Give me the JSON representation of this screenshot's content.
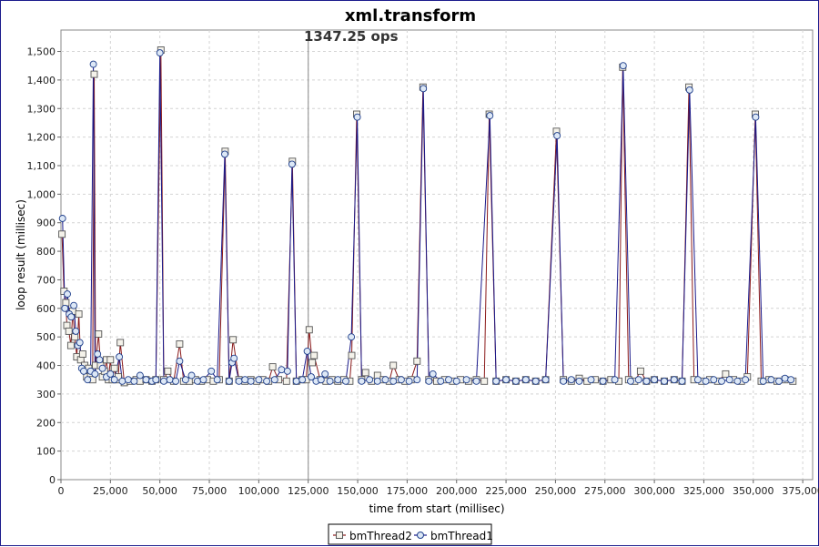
{
  "chart_data": {
    "type": "line",
    "title": "xml.transform",
    "annotation": "1347.25 ops",
    "marker_x": 125000,
    "xlabel": "time from start (millisec)",
    "ylabel": "loop result (millisec)",
    "xlim": [
      0,
      380000
    ],
    "ylim": [
      0,
      1575
    ],
    "xticks": [
      0,
      25000,
      50000,
      75000,
      100000,
      125000,
      150000,
      175000,
      200000,
      225000,
      250000,
      275000,
      300000,
      325000,
      350000,
      375000
    ],
    "xtick_labels": [
      "0",
      "25,000",
      "50,000",
      "75,000",
      "100,000",
      "125,000",
      "150,000",
      "175,000",
      "200,000",
      "225,000",
      "250,000",
      "275,000",
      "300,000",
      "325,000",
      "350,000",
      "375,000"
    ],
    "yticks": [
      0,
      100,
      200,
      300,
      400,
      500,
      600,
      700,
      800,
      900,
      1000,
      1100,
      1200,
      1300,
      1400,
      1500
    ],
    "ytick_labels": [
      "0",
      "100",
      "200",
      "300",
      "400",
      "500",
      "600",
      "700",
      "800",
      "900",
      "1,000",
      "1,100",
      "1,200",
      "1,300",
      "1,400",
      "1,500"
    ],
    "grid": true,
    "legend_position": "bottom-center",
    "series": [
      {
        "name": "bmThread2",
        "color": "#8b1a1a",
        "marker": "square",
        "points": [
          [
            500,
            860
          ],
          [
            1500,
            660
          ],
          [
            2500,
            620
          ],
          [
            3000,
            540
          ],
          [
            4000,
            520
          ],
          [
            5000,
            470
          ],
          [
            6000,
            590
          ],
          [
            7000,
            500
          ],
          [
            8000,
            430
          ],
          [
            9000,
            580
          ],
          [
            10000,
            420
          ],
          [
            11000,
            440
          ],
          [
            12000,
            400
          ],
          [
            13000,
            360
          ],
          [
            14000,
            390
          ],
          [
            15000,
            370
          ],
          [
            16000,
            350
          ],
          [
            16800,
            1420
          ],
          [
            17500,
            400
          ],
          [
            19000,
            510
          ],
          [
            20000,
            400
          ],
          [
            21000,
            360
          ],
          [
            22000,
            380
          ],
          [
            23000,
            420
          ],
          [
            24000,
            350
          ],
          [
            25000,
            420
          ],
          [
            26000,
            350
          ],
          [
            27000,
            390
          ],
          [
            28000,
            350
          ],
          [
            29000,
            360
          ],
          [
            30000,
            480
          ],
          [
            32000,
            340
          ],
          [
            35000,
            345
          ],
          [
            38000,
            350
          ],
          [
            40000,
            345
          ],
          [
            43000,
            350
          ],
          [
            46000,
            345
          ],
          [
            48000,
            350
          ],
          [
            50500,
            1505
          ],
          [
            52000,
            350
          ],
          [
            54000,
            380
          ],
          [
            57000,
            345
          ],
          [
            60000,
            475
          ],
          [
            62000,
            345
          ],
          [
            65000,
            345
          ],
          [
            68000,
            350
          ],
          [
            71000,
            345
          ],
          [
            74000,
            350
          ],
          [
            77000,
            345
          ],
          [
            80000,
            350
          ],
          [
            83000,
            1150
          ],
          [
            85000,
            345
          ],
          [
            87000,
            490
          ],
          [
            90000,
            350
          ],
          [
            93000,
            345
          ],
          [
            96000,
            350
          ],
          [
            99000,
            345
          ],
          [
            102000,
            350
          ],
          [
            105000,
            345
          ],
          [
            107000,
            395
          ],
          [
            110000,
            350
          ],
          [
            114000,
            345
          ],
          [
            117000,
            1115
          ],
          [
            119000,
            345
          ],
          [
            122000,
            350
          ],
          [
            124000,
            350
          ],
          [
            125500,
            525
          ],
          [
            127000,
            410
          ],
          [
            128000,
            435
          ],
          [
            131000,
            350
          ],
          [
            134000,
            345
          ],
          [
            137000,
            350
          ],
          [
            140000,
            345
          ],
          [
            143000,
            350
          ],
          [
            146000,
            345
          ],
          [
            147000,
            435
          ],
          [
            149500,
            1280
          ],
          [
            152000,
            350
          ],
          [
            154000,
            375
          ],
          [
            157000,
            345
          ],
          [
            160000,
            365
          ],
          [
            163000,
            350
          ],
          [
            166000,
            345
          ],
          [
            168000,
            400
          ],
          [
            171000,
            350
          ],
          [
            174000,
            345
          ],
          [
            177000,
            350
          ],
          [
            180000,
            415
          ],
          [
            183000,
            1375
          ],
          [
            186000,
            350
          ],
          [
            190000,
            345
          ],
          [
            194000,
            350
          ],
          [
            198000,
            345
          ],
          [
            202000,
            350
          ],
          [
            206000,
            345
          ],
          [
            210000,
            350
          ],
          [
            214000,
            345
          ],
          [
            216500,
            1280
          ],
          [
            220000,
            345
          ],
          [
            225000,
            350
          ],
          [
            230000,
            345
          ],
          [
            235000,
            350
          ],
          [
            240000,
            345
          ],
          [
            245000,
            350
          ],
          [
            250500,
            1220
          ],
          [
            254000,
            350
          ],
          [
            258000,
            345
          ],
          [
            262000,
            355
          ],
          [
            266000,
            345
          ],
          [
            270000,
            350
          ],
          [
            274000,
            345
          ],
          [
            278000,
            350
          ],
          [
            282000,
            345
          ],
          [
            284000,
            1445
          ],
          [
            287000,
            350
          ],
          [
            290000,
            345
          ],
          [
            293000,
            380
          ],
          [
            296000,
            345
          ],
          [
            300000,
            350
          ],
          [
            305000,
            345
          ],
          [
            310000,
            350
          ],
          [
            314000,
            345
          ],
          [
            317500,
            1375
          ],
          [
            320000,
            350
          ],
          [
            324000,
            345
          ],
          [
            328000,
            350
          ],
          [
            332000,
            345
          ],
          [
            336000,
            370
          ],
          [
            340000,
            350
          ],
          [
            344000,
            345
          ],
          [
            347000,
            360
          ],
          [
            351000,
            1280
          ],
          [
            354000,
            345
          ],
          [
            358000,
            350
          ],
          [
            362000,
            345
          ],
          [
            366000,
            350
          ],
          [
            370000,
            345
          ]
        ]
      },
      {
        "name": "bmThread1",
        "color": "#1a1a8b",
        "marker": "circle",
        "points": [
          [
            800,
            915
          ],
          [
            2000,
            600
          ],
          [
            3200,
            650
          ],
          [
            4200,
            580
          ],
          [
            5200,
            570
          ],
          [
            6500,
            610
          ],
          [
            7500,
            520
          ],
          [
            8500,
            470
          ],
          [
            9500,
            480
          ],
          [
            10500,
            390
          ],
          [
            11500,
            380
          ],
          [
            13500,
            350
          ],
          [
            15000,
            380
          ],
          [
            16400,
            1455
          ],
          [
            17200,
            370
          ],
          [
            18500,
            440
          ],
          [
            19500,
            420
          ],
          [
            21000,
            390
          ],
          [
            23000,
            360
          ],
          [
            25000,
            370
          ],
          [
            27000,
            350
          ],
          [
            29500,
            430
          ],
          [
            31000,
            345
          ],
          [
            34000,
            350
          ],
          [
            37000,
            345
          ],
          [
            40000,
            365
          ],
          [
            43000,
            350
          ],
          [
            46000,
            345
          ],
          [
            48000,
            350
          ],
          [
            50000,
            1495
          ],
          [
            52000,
            345
          ],
          [
            55000,
            350
          ],
          [
            58000,
            345
          ],
          [
            60000,
            415
          ],
          [
            63000,
            350
          ],
          [
            66000,
            365
          ],
          [
            69000,
            345
          ],
          [
            72000,
            350
          ],
          [
            76000,
            380
          ],
          [
            79000,
            350
          ],
          [
            82800,
            1140
          ],
          [
            85000,
            345
          ],
          [
            86500,
            410
          ],
          [
            87500,
            425
          ],
          [
            90000,
            345
          ],
          [
            93000,
            350
          ],
          [
            96000,
            345
          ],
          [
            100000,
            350
          ],
          [
            104000,
            345
          ],
          [
            108000,
            350
          ],
          [
            111500,
            385
          ],
          [
            114500,
            380
          ],
          [
            116800,
            1105
          ],
          [
            119000,
            345
          ],
          [
            122000,
            350
          ],
          [
            124500,
            450
          ],
          [
            126500,
            360
          ],
          [
            129000,
            345
          ],
          [
            131500,
            350
          ],
          [
            133500,
            370
          ],
          [
            136000,
            345
          ],
          [
            140000,
            350
          ],
          [
            144000,
            345
          ],
          [
            146800,
            500
          ],
          [
            149800,
            1270
          ],
          [
            152000,
            345
          ],
          [
            156000,
            350
          ],
          [
            160000,
            345
          ],
          [
            164000,
            350
          ],
          [
            168000,
            345
          ],
          [
            172000,
            350
          ],
          [
            176000,
            345
          ],
          [
            180000,
            350
          ],
          [
            183200,
            1370
          ],
          [
            186000,
            345
          ],
          [
            188000,
            370
          ],
          [
            192000,
            345
          ],
          [
            196000,
            350
          ],
          [
            200000,
            345
          ],
          [
            205000,
            350
          ],
          [
            210000,
            345
          ],
          [
            216800,
            1275
          ],
          [
            220000,
            345
          ],
          [
            225000,
            350
          ],
          [
            230000,
            345
          ],
          [
            235000,
            350
          ],
          [
            240000,
            345
          ],
          [
            245000,
            350
          ],
          [
            250800,
            1205
          ],
          [
            254000,
            345
          ],
          [
            258000,
            350
          ],
          [
            262000,
            345
          ],
          [
            268000,
            350
          ],
          [
            274000,
            345
          ],
          [
            280000,
            350
          ],
          [
            284200,
            1450
          ],
          [
            288000,
            345
          ],
          [
            292000,
            350
          ],
          [
            296000,
            345
          ],
          [
            300000,
            350
          ],
          [
            305000,
            345
          ],
          [
            310000,
            350
          ],
          [
            314000,
            345
          ],
          [
            317800,
            1365
          ],
          [
            322000,
            350
          ],
          [
            326000,
            345
          ],
          [
            330000,
            350
          ],
          [
            334000,
            345
          ],
          [
            338000,
            350
          ],
          [
            342000,
            345
          ],
          [
            346000,
            350
          ],
          [
            351200,
            1270
          ],
          [
            355000,
            345
          ],
          [
            359000,
            350
          ],
          [
            363000,
            345
          ],
          [
            366000,
            355
          ],
          [
            369000,
            350
          ]
        ]
      }
    ]
  }
}
